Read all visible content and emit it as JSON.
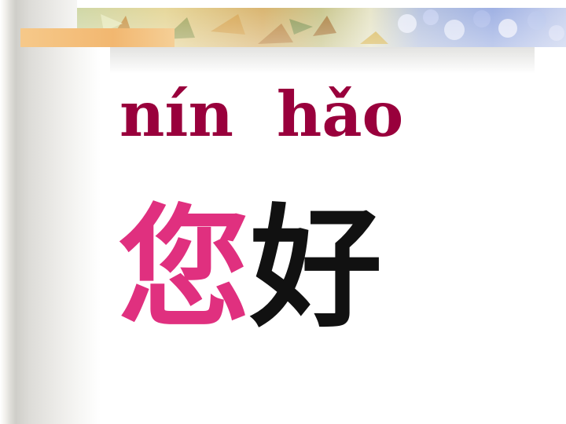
{
  "slide": {
    "pinyin": "nín  hǎo",
    "characters": {
      "first": "您",
      "second": "好"
    }
  },
  "colors": {
    "pinyin": "#99003c",
    "first_character": "#e0307f",
    "second_character": "#111111",
    "accent_bar": "#f2b770"
  }
}
